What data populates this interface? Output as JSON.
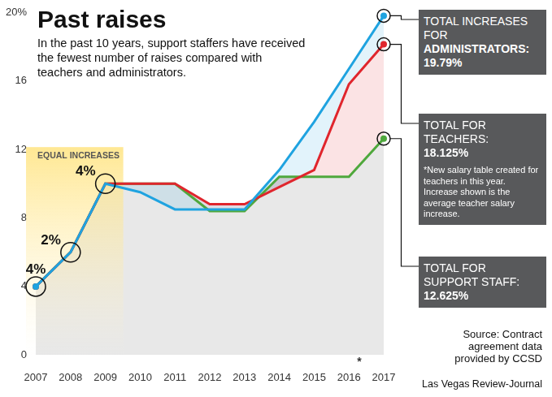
{
  "chart_data": {
    "type": "line",
    "title": "Past raises",
    "subtitle": "In the past 10 years, support staffers have received the fewest number of raises compared with teachers and administrators.",
    "categories": [
      "2007",
      "2008",
      "2009",
      "2010",
      "2011",
      "2012",
      "2013",
      "2014",
      "2015",
      "2016",
      "2017"
    ],
    "series": [
      {
        "name": "ADMINISTRATORS",
        "color": "#1fa3e0",
        "values": [
          4,
          6,
          10,
          9.5,
          8.5,
          8.5,
          8.5,
          10.8,
          13.6,
          16.7,
          19.79
        ],
        "callout": {
          "text": "TOTAL INCREASES FOR",
          "bold_text": "ADMINISTRATORS: 19.79%"
        }
      },
      {
        "name": "TEACHERS",
        "color": "#e0262d",
        "values": [
          4,
          6,
          10,
          10,
          10,
          8.8,
          8.8,
          9.8,
          10.8,
          15.8,
          18.125
        ],
        "callout": {
          "text": "TOTAL FOR TEACHERS:",
          "bold_text": "18.125%",
          "note": "*New salary table created for teachers in this year. Increase shown is the average teacher salary increase."
        }
      },
      {
        "name": "SUPPORT STAFF",
        "color": "#4fa83d",
        "values": [
          4,
          6,
          10,
          10,
          10,
          8.4,
          8.4,
          10.4,
          10.4,
          10.4,
          12.625
        ],
        "callout": {
          "text": "TOTAL FOR SUPPORT STAFF:",
          "bold_text": "12.625%"
        }
      }
    ],
    "ylim": [
      0,
      20
    ],
    "yticks": [
      0,
      4,
      8,
      12,
      16,
      {
        "value": 20,
        "label": "20%"
      }
    ],
    "grid": false,
    "highlight": {
      "text": "EQUAL INCREASES",
      "from": "2007",
      "to": "2009"
    },
    "point_labels": [
      {
        "x": "2007",
        "text": "4%"
      },
      {
        "x": "2008",
        "text": "2%"
      },
      {
        "x": "2009",
        "text": "4%"
      }
    ],
    "footnote_marks": [
      {
        "x": "2016",
        "text": "*"
      }
    ],
    "source": "Source: Contract agreement data provided by CCSD",
    "credit": "Las Vegas Review-Journal"
  }
}
